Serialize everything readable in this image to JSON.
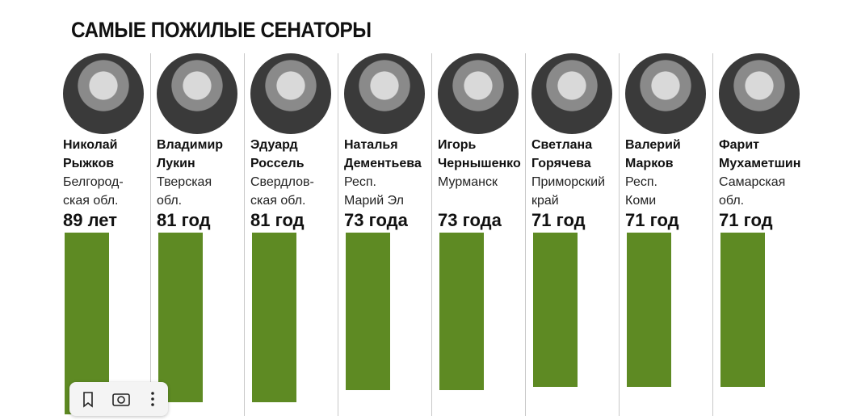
{
  "chart_data": {
    "type": "bar",
    "title": "САМЫЕ ПОЖИЛЫЕ СЕНАТОРЫ",
    "categories": [
      "Николай\nРыжков",
      "Владимир\nЛукин",
      "Эдуард\nРоссель",
      "Наталья\nДементьева",
      "Игорь\nЧернышенко",
      "Светлана\nГорячева",
      "Валерий\nМарков",
      "Фарит\nМухаметшин"
    ],
    "regions": [
      "Белгород-\nская обл.",
      "Тверская\nобл.",
      "Свердлов-\nская обл.",
      "Респ.\nМарий Эл",
      "Мурманск",
      "Приморский\nкрай",
      "Респ.\nКоми",
      "Самарская\nобл."
    ],
    "values": [
      89,
      81,
      81,
      73,
      73,
      71,
      71,
      71
    ],
    "value_labels": [
      "89 лет",
      "81 год",
      "81 год",
      "73 года",
      "73 года",
      "71 год",
      "71 год",
      "71 год"
    ],
    "color": "#5e8a23"
  }
}
